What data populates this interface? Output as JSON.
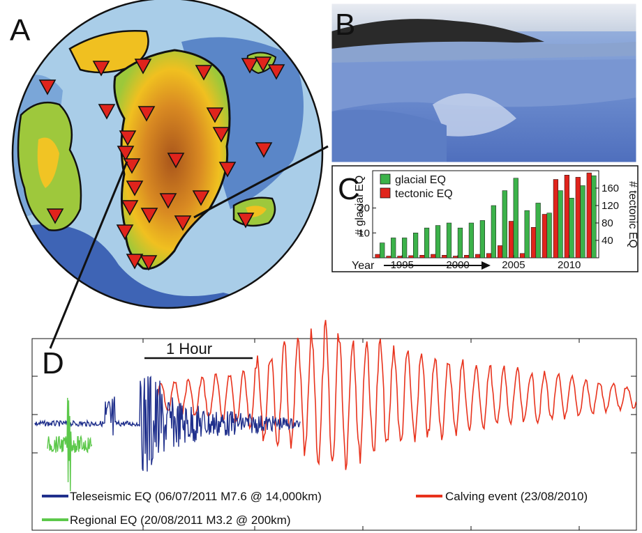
{
  "panels": {
    "a_label": "A",
    "b_label": "B",
    "c_label": "C",
    "d_label": "D"
  },
  "colors": {
    "glacial": "#3cb24a",
    "tectonic": "#e0241c",
    "teleseismic": "#20308c",
    "calving": "#e8321c",
    "regional": "#5cc84a",
    "station": "#e0241c"
  },
  "map": {
    "projection": "polar stereographic (circular)",
    "station_symbol": "inverted-triangle"
  },
  "photo": {
    "subject": "glacier calving front"
  },
  "chart_data": {
    "type": "bar",
    "x": [
      1993,
      1994,
      1995,
      1996,
      1997,
      1998,
      1999,
      2000,
      2001,
      2002,
      2003,
      2004,
      2005,
      2006,
      2007,
      2008,
      2009,
      2010,
      2011,
      2012
    ],
    "series": [
      {
        "name": "glacial EQ",
        "axis": "left",
        "values": [
          6,
          8,
          8,
          10,
          12,
          13,
          14,
          12,
          14,
          15,
          21,
          27,
          32,
          19,
          22,
          18,
          27,
          24,
          29,
          33
        ]
      },
      {
        "name": "tectonic EQ",
        "axis": "right",
        "values": [
          8,
          4,
          4,
          5,
          6,
          8,
          6,
          4,
          6,
          8,
          10,
          28,
          84,
          10,
          70,
          100,
          180,
          190,
          185,
          195
        ]
      }
    ],
    "xlabel": "Year",
    "ylabel_left": "# glacial EQ",
    "ylabel_right": "# tectonic EQ",
    "xticks": [
      "1995",
      "2000",
      "2005",
      "2010"
    ],
    "yticks_left": [
      "10",
      "20"
    ],
    "yticks_right": [
      "40",
      "80",
      "120",
      "160"
    ],
    "ylim_left": [
      0,
      35
    ],
    "ylim_right": [
      0,
      200
    ],
    "legend_position": "top-left"
  },
  "seismogram": {
    "scale_label": "1 Hour",
    "legend": {
      "teleseismic": "Teleseismic EQ (06/07/2011 M7.6 @ 14,000km)",
      "calving": "Calving event (23/08/2010)",
      "regional": "Regional EQ (20/08/2011 M3.2 @ 200km)"
    }
  }
}
